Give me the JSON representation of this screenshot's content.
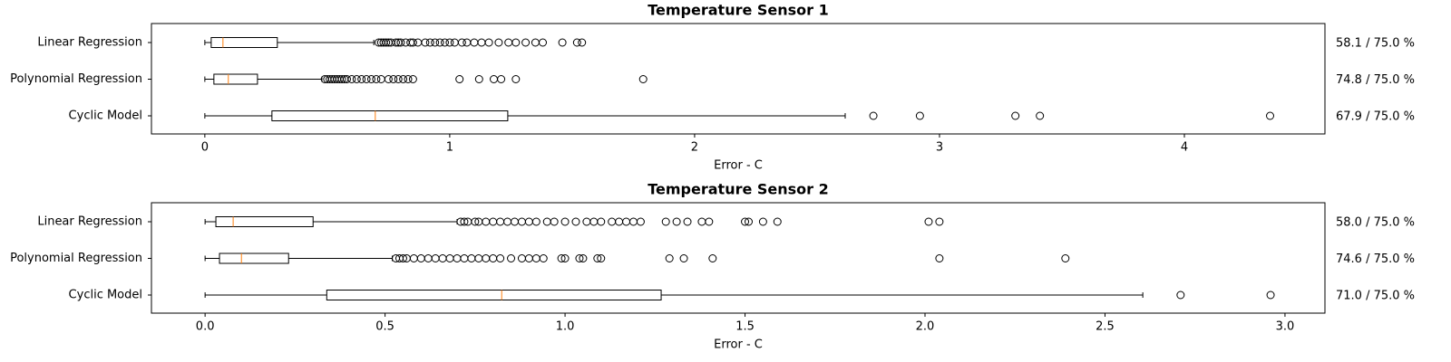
{
  "chart_data": [
    {
      "type": "boxplot",
      "title": "Temperature Sensor 1",
      "xlabel": "Error - C",
      "xlim": [
        -0.218,
        4.574
      ],
      "xticks": [
        0,
        1,
        2,
        3,
        4
      ],
      "categories": [
        "Linear Regression",
        "Polynomial Regression",
        "Cyclic Model"
      ],
      "annotations": [
        "58.1 / 75.0 %",
        "74.8 / 75.0 %",
        "67.9 / 75.0 %"
      ],
      "median_color": "#ff7f0e",
      "boxes": [
        {
          "whislo": 0,
          "q1": 0.026,
          "med": 0.074,
          "q3": 0.296,
          "whishi": 0.69,
          "fliers": [
            0.71,
            0.72,
            0.73,
            0.74,
            0.75,
            0.76,
            0.78,
            0.79,
            0.8,
            0.82,
            0.84,
            0.85,
            0.87,
            0.9,
            0.92,
            0.94,
            0.96,
            0.98,
            1.0,
            1.02,
            1.05,
            1.07,
            1.1,
            1.13,
            1.16,
            1.2,
            1.24,
            1.27,
            1.31,
            1.35,
            1.38,
            1.46,
            1.52,
            1.54
          ]
        },
        {
          "whislo": 0,
          "q1": 0.037,
          "med": 0.096,
          "q3": 0.215,
          "whishi": 0.478,
          "fliers": [
            0.49,
            0.5,
            0.51,
            0.52,
            0.53,
            0.54,
            0.55,
            0.56,
            0.57,
            0.58,
            0.6,
            0.62,
            0.64,
            0.66,
            0.68,
            0.7,
            0.72,
            0.75,
            0.77,
            0.79,
            0.81,
            0.83,
            0.85,
            1.04,
            1.12,
            1.18,
            1.21,
            1.27,
            1.79
          ]
        },
        {
          "whislo": 0,
          "q1": 0.274,
          "med": 0.696,
          "q3": 1.237,
          "whishi": 2.615,
          "fliers": [
            2.73,
            2.92,
            3.31,
            3.41,
            4.35
          ]
        }
      ]
    },
    {
      "type": "boxplot",
      "title": "Temperature Sensor 2",
      "xlabel": "Error - C",
      "xlim": [
        -0.149,
        3.111
      ],
      "xticks": [
        {
          "value": 0,
          "label": "0.0"
        },
        {
          "value": 0.5,
          "label": "0.5"
        },
        {
          "value": 1,
          "label": "1.0"
        },
        {
          "value": 1.5,
          "label": "1.5"
        },
        {
          "value": 2,
          "label": "2.0"
        },
        {
          "value": 2.5,
          "label": "2.5"
        },
        {
          "value": 3,
          "label": "3.0"
        }
      ],
      "categories": [
        "Linear Regression",
        "Polynomial Regression",
        "Cyclic Model"
      ],
      "annotations": [
        "58.0 / 75.0 %",
        "74.6 / 75.0 %",
        "71.0 / 75.0 %"
      ],
      "median_color": "#ff7f0e",
      "boxes": [
        {
          "whislo": 0,
          "q1": 0.03,
          "med": 0.078,
          "q3": 0.3,
          "whishi": 0.7,
          "fliers": [
            0.71,
            0.72,
            0.73,
            0.75,
            0.76,
            0.78,
            0.8,
            0.82,
            0.84,
            0.86,
            0.88,
            0.9,
            0.92,
            0.95,
            0.97,
            1.0,
            1.03,
            1.06,
            1.08,
            1.1,
            1.13,
            1.15,
            1.17,
            1.19,
            1.21,
            1.28,
            1.31,
            1.34,
            1.38,
            1.4,
            1.5,
            1.51,
            1.55,
            1.59,
            2.01,
            2.04
          ]
        },
        {
          "whislo": 0,
          "q1": 0.04,
          "med": 0.101,
          "q3": 0.232,
          "whishi": 0.52,
          "fliers": [
            0.53,
            0.54,
            0.55,
            0.56,
            0.58,
            0.6,
            0.62,
            0.64,
            0.66,
            0.68,
            0.7,
            0.72,
            0.74,
            0.76,
            0.78,
            0.8,
            0.82,
            0.85,
            0.88,
            0.9,
            0.92,
            0.94,
            0.99,
            1.0,
            1.04,
            1.05,
            1.09,
            1.1,
            1.29,
            1.33,
            1.41,
            2.04,
            2.39
          ]
        },
        {
          "whislo": 0,
          "q1": 0.338,
          "med": 0.824,
          "q3": 1.267,
          "whishi": 2.605,
          "fliers": [
            2.71,
            2.96
          ]
        }
      ]
    }
  ]
}
